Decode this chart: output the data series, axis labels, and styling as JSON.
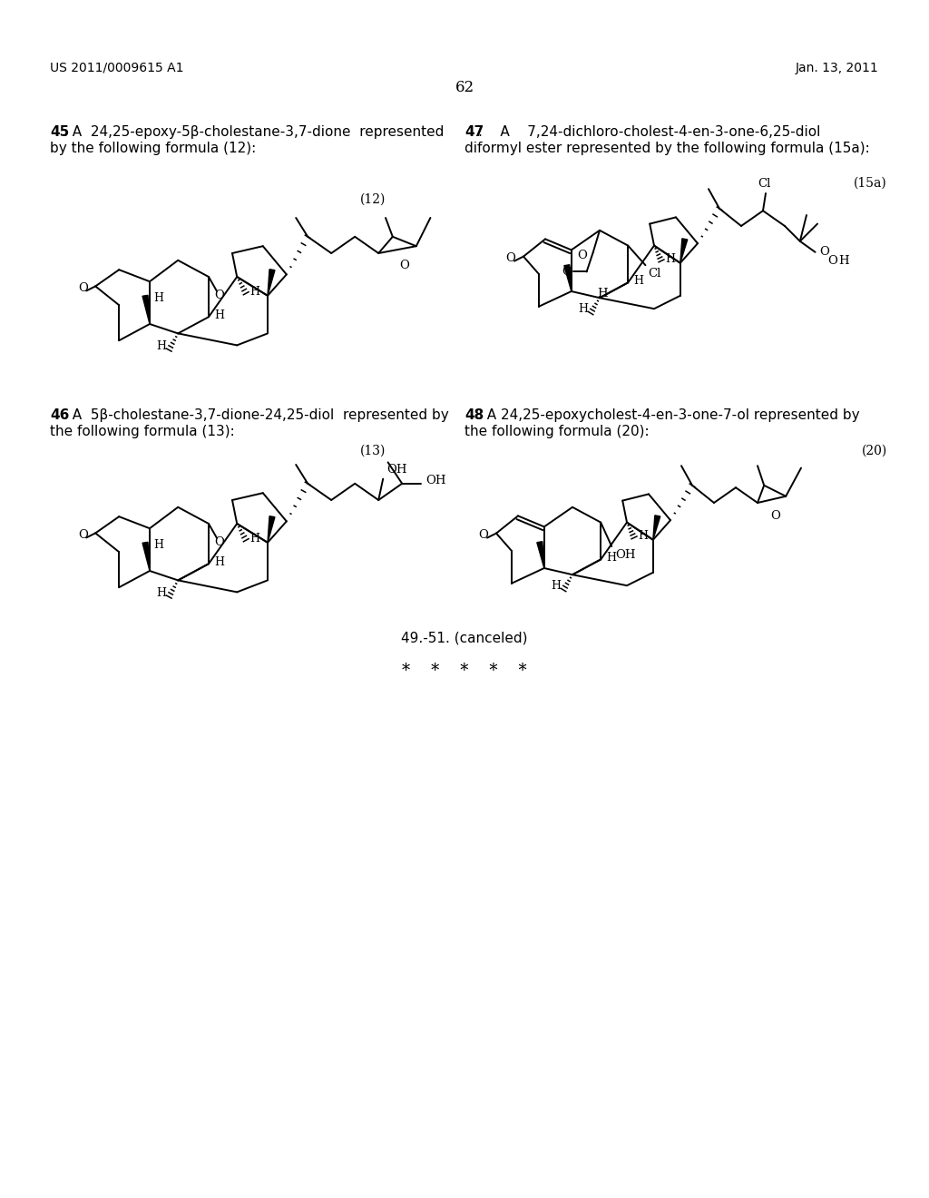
{
  "page_header_left": "US 2011/0009615 A1",
  "page_header_right": "Jan. 13, 2011",
  "page_number": "62",
  "background_color": "#ffffff",
  "text_color": "#000000",
  "item45_bold": "45",
  "item45_text": ". A  24,25-epoxy-5β-cholestane-3,7-dione  represented\nby the following formula (12):",
  "item46_bold": "46",
  "item46_text": ". A  5β-cholestane-3,7-dione-24,25-diol  represented by\nthe following formula (13):",
  "item47_bold": "47",
  "item47_text": ".    A    7,24-dichloro-cholest-4-en-3-one-6,25-diol\ndiformyl ester represented by the following formula (15a):",
  "item48_bold": "48",
  "item48_text": ". A 24,25-epoxycholest-4-en-3-one-7-ol represented by\nthe following formula (20):",
  "label12": "(12)",
  "label13": "(13)",
  "label15a": "(15a)",
  "label20": "(20)",
  "footer_text": "49.-51. (canceled)",
  "footer_stars": "*    *    *    *    *"
}
